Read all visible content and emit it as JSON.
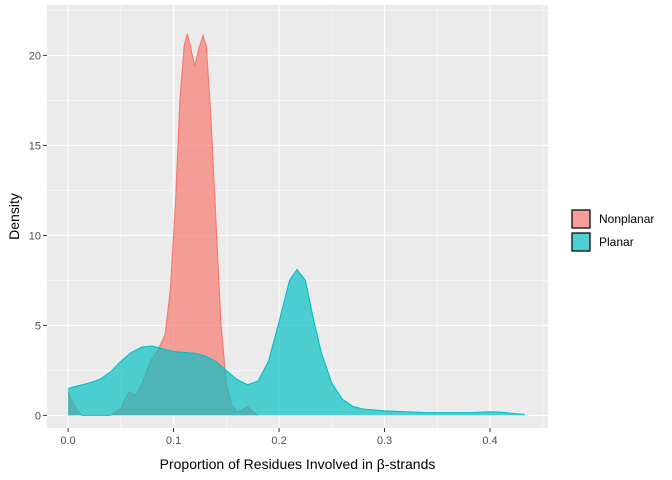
{
  "chart_data": {
    "type": "area",
    "subtype": "density",
    "title": "",
    "xlabel": "Proportion of Residues Involved in β-strands",
    "ylabel": "Density",
    "xlim": [
      -0.02,
      0.455
    ],
    "ylim": [
      -0.7,
      22.8
    ],
    "x_ticks": [
      0.0,
      0.1,
      0.2,
      0.3,
      0.4
    ],
    "x_tick_labels": [
      "0.0",
      "0.1",
      "0.2",
      "0.3",
      "0.4"
    ],
    "y_ticks": [
      0,
      5,
      10,
      15,
      20
    ],
    "y_tick_labels": [
      "0",
      "5",
      "10",
      "15",
      "20"
    ],
    "grid": true,
    "legend_position": "right",
    "series": [
      {
        "name": "Nonplanar",
        "fill": "#F8766D",
        "points": [
          [
            0.0,
            1.3
          ],
          [
            0.003,
            0.9
          ],
          [
            0.008,
            0.3
          ],
          [
            0.013,
            0.0
          ],
          [
            0.04,
            0.0
          ],
          [
            0.05,
            0.4
          ],
          [
            0.055,
            1.0
          ],
          [
            0.058,
            1.3
          ],
          [
            0.063,
            1.1
          ],
          [
            0.068,
            1.5
          ],
          [
            0.073,
            2.2
          ],
          [
            0.078,
            3.0
          ],
          [
            0.085,
            3.6
          ],
          [
            0.092,
            4.5
          ],
          [
            0.097,
            7.0
          ],
          [
            0.102,
            12.0
          ],
          [
            0.106,
            17.5
          ],
          [
            0.11,
            20.5
          ],
          [
            0.113,
            21.2
          ],
          [
            0.116,
            20.5
          ],
          [
            0.12,
            19.4
          ],
          [
            0.124,
            20.4
          ],
          [
            0.128,
            21.1
          ],
          [
            0.131,
            20.5
          ],
          [
            0.135,
            17.0
          ],
          [
            0.14,
            11.0
          ],
          [
            0.145,
            5.0
          ],
          [
            0.15,
            1.8
          ],
          [
            0.155,
            0.6
          ],
          [
            0.16,
            0.2
          ],
          [
            0.165,
            0.3
          ],
          [
            0.17,
            0.5
          ],
          [
            0.175,
            0.2
          ],
          [
            0.18,
            0.0
          ]
        ]
      },
      {
        "name": "Planar",
        "fill": "#00BFC4",
        "points": [
          [
            0.0,
            1.5
          ],
          [
            0.01,
            1.65
          ],
          [
            0.02,
            1.8
          ],
          [
            0.03,
            2.0
          ],
          [
            0.04,
            2.4
          ],
          [
            0.05,
            3.0
          ],
          [
            0.06,
            3.5
          ],
          [
            0.07,
            3.8
          ],
          [
            0.08,
            3.85
          ],
          [
            0.09,
            3.7
          ],
          [
            0.1,
            3.55
          ],
          [
            0.11,
            3.5
          ],
          [
            0.12,
            3.45
          ],
          [
            0.13,
            3.3
          ],
          [
            0.14,
            3.0
          ],
          [
            0.15,
            2.5
          ],
          [
            0.16,
            2.0
          ],
          [
            0.17,
            1.7
          ],
          [
            0.18,
            1.9
          ],
          [
            0.19,
            3.0
          ],
          [
            0.2,
            5.2
          ],
          [
            0.21,
            7.5
          ],
          [
            0.217,
            8.1
          ],
          [
            0.225,
            7.5
          ],
          [
            0.232,
            5.5
          ],
          [
            0.24,
            3.5
          ],
          [
            0.25,
            1.8
          ],
          [
            0.26,
            0.9
          ],
          [
            0.27,
            0.5
          ],
          [
            0.28,
            0.35
          ],
          [
            0.3,
            0.25
          ],
          [
            0.32,
            0.2
          ],
          [
            0.34,
            0.15
          ],
          [
            0.36,
            0.15
          ],
          [
            0.38,
            0.15
          ],
          [
            0.4,
            0.2
          ],
          [
            0.41,
            0.18
          ],
          [
            0.42,
            0.12
          ],
          [
            0.433,
            0.05
          ]
        ]
      }
    ]
  }
}
